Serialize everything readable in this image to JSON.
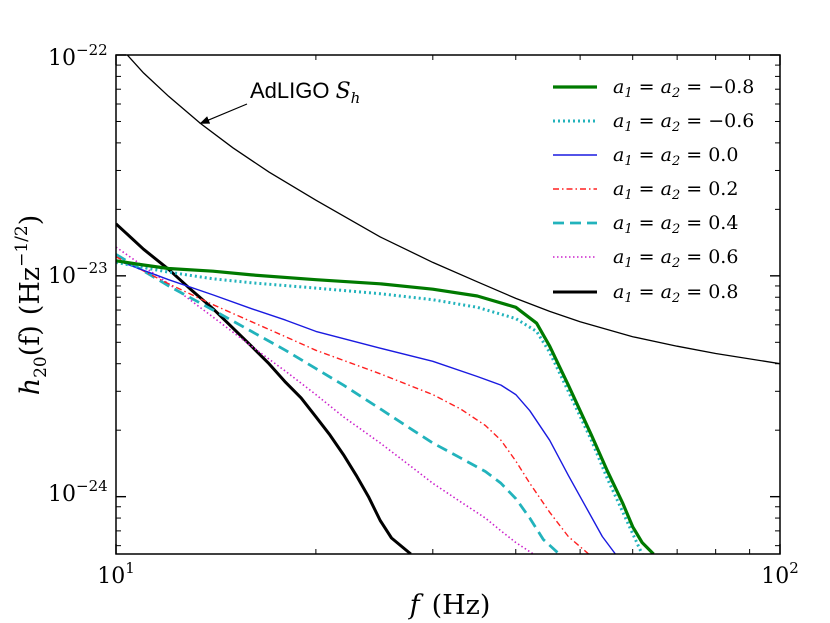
{
  "chart_data": {
    "type": "line",
    "title": "",
    "xscale": "log",
    "yscale": "log",
    "xlim": [
      10,
      100
    ],
    "ylim": [
      5.5e-25,
      1e-22
    ],
    "xlabel": {
      "var": "f",
      "unit": "(Hz)"
    },
    "ylabel": {
      "var": "h",
      "sub": "20",
      "arg": "(f)",
      "unit": "(Hz",
      "exp": "−1/2",
      "close": ")"
    },
    "x_ticks": [
      {
        "value": 10,
        "base": "10",
        "exp": "1"
      },
      {
        "value": 100,
        "base": "10",
        "exp": "2"
      }
    ],
    "y_ticks": [
      {
        "value": 1e-24,
        "base": "10",
        "exp": "−24"
      },
      {
        "value": 1e-23,
        "base": "10",
        "exp": "−23"
      },
      {
        "value": 1e-22,
        "base": "10",
        "exp": "−22"
      }
    ],
    "annotation": {
      "text": "AdLIGO ",
      "math": "S",
      "sub": "h",
      "points_to": [
        13.4,
        4.9e-23
      ]
    },
    "legend_position": "top-right",
    "noise_curve": {
      "name": "AdLIGO S_h",
      "color": "#000000",
      "x": [
        10.4,
        11,
        12,
        13.4,
        15,
        17,
        20,
        25,
        30,
        35,
        40,
        45,
        50,
        60,
        70,
        80,
        100
      ],
      "y": [
        1e-22,
        8.3e-23,
        6.5e-23,
        4.9e-23,
        3.8e-23,
        2.95e-23,
        2.2e-23,
        1.5e-23,
        1.15e-23,
        9.4e-24,
        7.9e-24,
        6.9e-24,
        6.2e-24,
        5.3e-24,
        4.8e-24,
        4.45e-24,
        4e-24
      ]
    },
    "series": [
      {
        "name": "a1 = a2 = −0.8",
        "label": {
          "a1": "a",
          "s1": "1",
          "a2": "a",
          "s2": "2",
          "val": "−0.8"
        },
        "color": "#007a00",
        "dash": "",
        "width": 3.2,
        "x": [
          10,
          11,
          12,
          14,
          16,
          20,
          25,
          30,
          35,
          40,
          43,
          45,
          48,
          52,
          55,
          58,
          60,
          62,
          64.5
        ],
        "y": [
          1.17e-23,
          1.12e-23,
          1.08e-23,
          1.05e-23,
          1.01e-23,
          9.6e-24,
          9.2e-24,
          8.7e-24,
          8.1e-24,
          7.2e-24,
          6.1e-24,
          4.8e-24,
          3.2e-24,
          1.9e-24,
          1.3e-24,
          9.3e-25,
          7.3e-25,
          6.2e-25,
          5.5e-25
        ]
      },
      {
        "name": "a1 = a2 = −0.6",
        "label": {
          "a1": "a",
          "s1": "1",
          "a2": "a",
          "s2": "2",
          "val": "−0.6"
        },
        "color": "#22b3bc",
        "dash": "2,3",
        "width": 3.0,
        "x": [
          10,
          11,
          12,
          14,
          16,
          20,
          25,
          30,
          35,
          40,
          43,
          45,
          48,
          52,
          55,
          58,
          60,
          62
        ],
        "y": [
          1.15e-23,
          1.09e-23,
          1.04e-23,
          9.7e-24,
          9.3e-24,
          8.8e-24,
          8.3e-24,
          7.8e-24,
          7.2e-24,
          6.4e-24,
          5.6e-24,
          4.5e-24,
          3e-24,
          1.8e-24,
          1.2e-24,
          8.5e-25,
          6.8e-25,
          5.5e-25
        ]
      },
      {
        "name": "a1 = a2 = 0.0",
        "label": {
          "a1": "a",
          "s1": "1",
          "a2": "a",
          "s2": "2",
          "val": "0.0"
        },
        "color": "#1a1ae0",
        "dash": "",
        "width": 1.4,
        "x": [
          10,
          12,
          14,
          16,
          18,
          20,
          25,
          30,
          35,
          38,
          40,
          42,
          45,
          48,
          51,
          54,
          56.5
        ],
        "y": [
          1.18e-23,
          9.6e-24,
          8.2e-24,
          7.1e-24,
          6.3e-24,
          5.6e-24,
          4.7e-24,
          4.1e-24,
          3.5e-24,
          3.2e-24,
          2.9e-24,
          2.45e-24,
          1.8e-24,
          1.25e-24,
          9e-25,
          6.6e-25,
          5.5e-25
        ]
      },
      {
        "name": "a1 = a2 = 0.2",
        "label": {
          "a1": "a",
          "s1": "1",
          "a2": "a",
          "s2": "2",
          "val": "0.2"
        },
        "color": "#ff2020",
        "dash": "6,3,1.5,3",
        "width": 1.4,
        "x": [
          10,
          12,
          14,
          16,
          18,
          20,
          25,
          30,
          33,
          36,
          38,
          40,
          42,
          45,
          48,
          51.5
        ],
        "y": [
          1.22e-23,
          9.2e-24,
          7.4e-24,
          6.2e-24,
          5.3e-24,
          4.6e-24,
          3.6e-24,
          2.9e-24,
          2.5e-24,
          2.1e-24,
          1.8e-24,
          1.45e-24,
          1.15e-24,
          8.5e-25,
          6.6e-25,
          5.5e-25
        ]
      },
      {
        "name": "a1 = a2 = 0.4",
        "label": {
          "a1": "a",
          "s1": "1",
          "a2": "a",
          "s2": "2",
          "val": "0.4"
        },
        "color": "#22b3bc",
        "dash": "11,6",
        "width": 2.8,
        "x": [
          10,
          12,
          14,
          16,
          18,
          20,
          22,
          25,
          28,
          30,
          33,
          36,
          38,
          40,
          42,
          44,
          46.5
        ],
        "y": [
          1.25e-23,
          9e-24,
          7e-24,
          5.6e-24,
          4.6e-24,
          3.8e-24,
          3.2e-24,
          2.5e-24,
          2e-24,
          1.75e-24,
          1.5e-24,
          1.3e-24,
          1.15e-24,
          9.8e-25,
          8e-25,
          6.4e-25,
          5.5e-25
        ]
      },
      {
        "name": "a1 = a2 = 0.6",
        "label": {
          "a1": "a",
          "s1": "1",
          "a2": "a",
          "s2": "2",
          "val": "0.6"
        },
        "color": "#cc22cc",
        "dash": "1.5,2.5",
        "width": 1.6,
        "x": [
          10,
          12,
          14,
          16,
          18,
          20,
          22,
          25,
          28,
          30,
          33,
          36,
          38,
          40,
          42.5
        ],
        "y": [
          1.35e-23,
          9.2e-24,
          6.5e-24,
          4.8e-24,
          3.7e-24,
          2.9e-24,
          2.3e-24,
          1.75e-24,
          1.35e-24,
          1.15e-24,
          9.5e-25,
          8e-25,
          7e-25,
          6.2e-25,
          5.5e-25
        ]
      },
      {
        "name": "a1 = a2 = 0.8",
        "label": {
          "a1": "a",
          "s1": "1",
          "a2": "a",
          "s2": "2",
          "val": "0.8"
        },
        "color": "#000000",
        "dash": "",
        "width": 3.0,
        "x": [
          10,
          11,
          12,
          13,
          14,
          15,
          16,
          17,
          18,
          19,
          20,
          21,
          22,
          23,
          24,
          25,
          26,
          27.8
        ],
        "y": [
          1.72e-23,
          1.32e-23,
          1.07e-23,
          8.6e-24,
          7.1e-24,
          5.8e-24,
          4.8e-24,
          4e-24,
          3.3e-24,
          2.8e-24,
          2.3e-24,
          1.9e-24,
          1.55e-24,
          1.25e-24,
          1e-24,
          7.8e-25,
          6.5e-25,
          5.5e-25
        ]
      }
    ]
  }
}
